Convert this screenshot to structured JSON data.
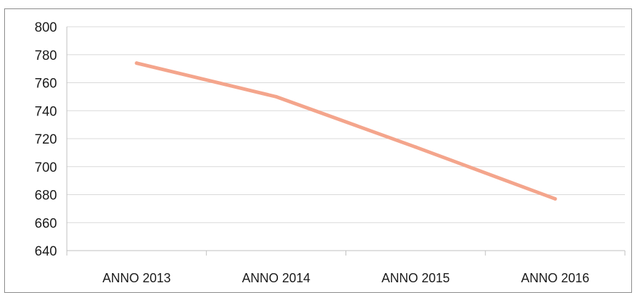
{
  "chart_data": {
    "type": "line",
    "title": "",
    "xlabel": "",
    "ylabel": "",
    "categories": [
      "ANNO 2013",
      "ANNO 2014",
      "ANNO 2015",
      "ANNO 2016"
    ],
    "series": [
      {
        "values": [
          774,
          750,
          714,
          677
        ]
      }
    ],
    "ylim": [
      640,
      800
    ],
    "yticks": [
      640,
      660,
      680,
      700,
      720,
      740,
      760,
      780,
      800
    ],
    "grid": true,
    "legend": "none",
    "colors": {
      "line": "#f4a58c",
      "grid": "#d9d9d9",
      "axis": "#bfbfbf"
    }
  }
}
